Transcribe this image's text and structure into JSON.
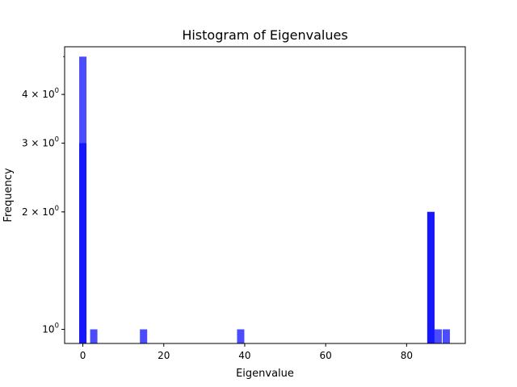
{
  "chart_data": {
    "type": "bar",
    "title": "Histogram of Eigenvalues",
    "xlabel": "Eigenvalue",
    "ylabel": "Frequency",
    "xlim": [
      -4.5,
      94.5
    ],
    "ylim": [
      0.92,
      5.3
    ],
    "y_scale": "log",
    "bar_width": 1.8,
    "x_ticks": [
      0,
      20,
      40,
      60,
      80
    ],
    "x_tick_labels": [
      "0",
      "20",
      "40",
      "60",
      "80"
    ],
    "y_ticks": [
      1,
      2,
      3,
      4
    ],
    "y_tick_bases": [
      "10",
      "2 × 10",
      "3 × 10",
      "4 × 10"
    ],
    "y_tick_exponent": "0",
    "series": [
      {
        "color": "#0000ff",
        "opacity": 0.7,
        "bars": [
          {
            "x": 0,
            "value": 5
          },
          {
            "x": 2.7,
            "value": 1
          },
          {
            "x": 15,
            "value": 1
          },
          {
            "x": 39,
            "value": 1
          },
          {
            "x": 86,
            "value": 2
          },
          {
            "x": 87.8,
            "value": 1
          },
          {
            "x": 89.8,
            "value": 1
          }
        ]
      },
      {
        "color": "#0000ff",
        "opacity": 0.7,
        "bars": [
          {
            "x": 0,
            "value": 3
          },
          {
            "x": 86,
            "value": 2
          }
        ]
      }
    ]
  }
}
